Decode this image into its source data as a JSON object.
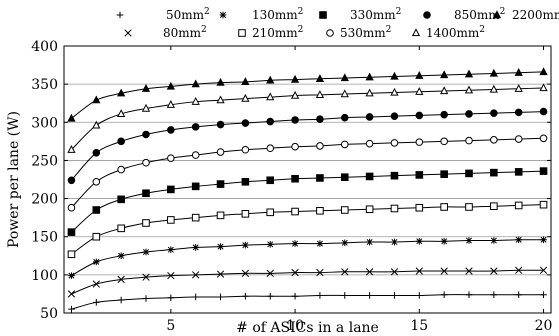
{
  "chart_data": {
    "type": "line",
    "xlabel": "# of ASICs in a lane",
    "ylabel": "Power per lane (W)",
    "xlim": [
      0.7,
      20.3
    ],
    "ylim": [
      50,
      400
    ],
    "xticks": [
      5,
      10,
      15,
      20
    ],
    "yticks": [
      50,
      100,
      150,
      200,
      250,
      300,
      350,
      400
    ],
    "grid": "horizontal",
    "legend_position": "top",
    "x": [
      1,
      2,
      3,
      4,
      5,
      6,
      7,
      8,
      9,
      10,
      11,
      12,
      13,
      14,
      15,
      16,
      17,
      18,
      19,
      20
    ],
    "series": [
      {
        "name": "50mm",
        "sup": "2",
        "marker": "plus",
        "values": [
          55,
          64,
          67,
          69,
          70,
          71,
          71,
          72,
          72,
          72,
          73,
          73,
          73,
          73,
          73,
          74,
          74,
          74,
          74,
          74
        ]
      },
      {
        "name": "80mm",
        "sup": "2",
        "marker": "x",
        "values": [
          75,
          88,
          94,
          97,
          99,
          100,
          101,
          102,
          102,
          103,
          103,
          104,
          104,
          104,
          105,
          105,
          105,
          105,
          106,
          106
        ]
      },
      {
        "name": "130mm",
        "sup": "2",
        "marker": "asterisk",
        "values": [
          99,
          117,
          125,
          130,
          133,
          136,
          137,
          139,
          140,
          141,
          141,
          142,
          143,
          143,
          144,
          144,
          145,
          145,
          146,
          146
        ]
      },
      {
        "name": "210mm",
        "sup": "2",
        "marker": "square-open",
        "values": [
          127,
          150,
          161,
          168,
          172,
          175,
          178,
          180,
          182,
          183,
          184,
          185,
          186,
          187,
          188,
          189,
          189,
          190,
          191,
          192
        ]
      },
      {
        "name": "330mm",
        "sup": "2",
        "marker": "square-filled",
        "values": [
          156,
          185,
          199,
          207,
          212,
          216,
          219,
          222,
          224,
          226,
          227,
          228,
          229,
          230,
          231,
          232,
          233,
          234,
          235,
          236
        ]
      },
      {
        "name": "530mm",
        "sup": "2",
        "marker": "circle-open",
        "values": [
          188,
          222,
          238,
          247,
          253,
          257,
          261,
          264,
          266,
          268,
          269,
          271,
          272,
          273,
          274,
          275,
          276,
          277,
          278,
          279
        ]
      },
      {
        "name": "850mm",
        "sup": "2",
        "marker": "circle-filled",
        "values": [
          224,
          260,
          275,
          284,
          290,
          294,
          297,
          299,
          301,
          303,
          304,
          306,
          307,
          308,
          309,
          310,
          311,
          312,
          313,
          314
        ]
      },
      {
        "name": "1400mm",
        "sup": "2",
        "marker": "triangle-open",
        "values": [
          264,
          296,
          311,
          318,
          323,
          327,
          329,
          331,
          333,
          335,
          336,
          337,
          338,
          339,
          340,
          341,
          342,
          343,
          344,
          345
        ]
      },
      {
        "name": "2200mm",
        "sup": "2",
        "marker": "triangle-filled",
        "values": [
          305,
          329,
          338,
          344,
          347,
          350,
          352,
          353,
          355,
          356,
          357,
          358,
          359,
          360,
          361,
          362,
          363,
          364,
          365,
          366
        ]
      }
    ]
  }
}
